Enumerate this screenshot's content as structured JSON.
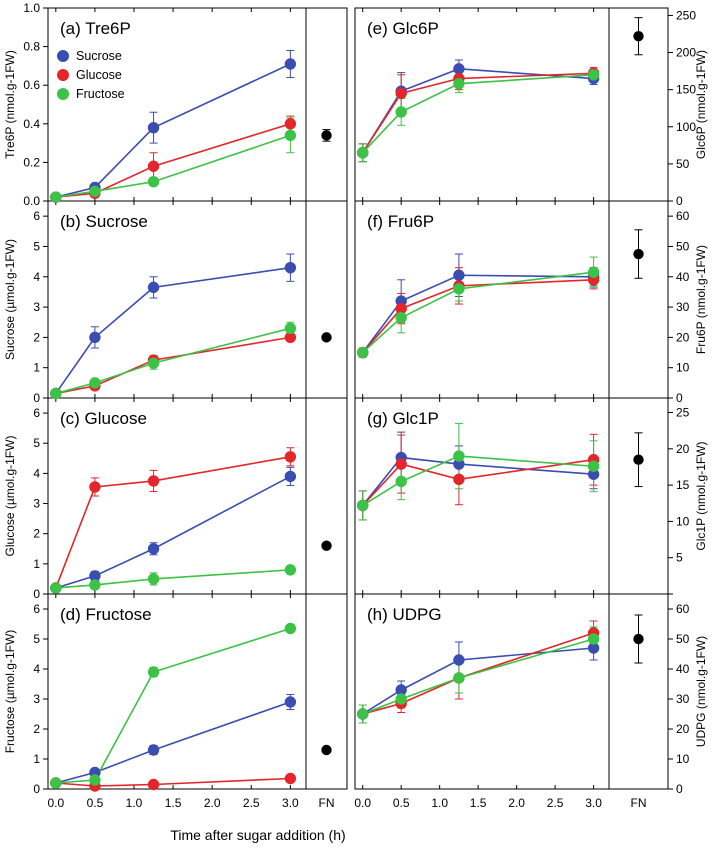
{
  "colors": {
    "Sucrose": "#3a4db0",
    "Glucose": "#e3262a",
    "Fructose": "#3cc246",
    "FN": "#000000"
  },
  "legend": [
    "Sucrose",
    "Glucose",
    "Fructose"
  ],
  "x_title": "Time after sugar addition (h)",
  "x_ticks": [
    "0.0",
    "0.5",
    "1.0",
    "1.5",
    "2.0",
    "2.5",
    "3.0"
  ],
  "fn_label": "FN",
  "chart_data": [
    {
      "type": "line",
      "id": "a",
      "title": "(a) Tre6P",
      "ylabel": "Tre6P (nmol.g-1FW)",
      "ylim": [
        0,
        1.0
      ],
      "ytick_labels": [
        "0.0",
        "0.2",
        "0.4",
        "0.6",
        "0.8",
        "1.0"
      ],
      "x": [
        0,
        0.5,
        1.25,
        3.0
      ],
      "series": [
        {
          "name": "Sucrose",
          "values": [
            0.02,
            0.07,
            0.38,
            0.71
          ],
          "errors": [
            0.01,
            0.02,
            0.08,
            0.07
          ]
        },
        {
          "name": "Glucose",
          "values": [
            0.02,
            0.04,
            0.18,
            0.4
          ],
          "errors": [
            0.01,
            0.02,
            0.07,
            0.04
          ]
        },
        {
          "name": "Fructose",
          "values": [
            0.02,
            0.05,
            0.1,
            0.34
          ],
          "errors": [
            0.01,
            0.02,
            0.02,
            0.09
          ]
        }
      ],
      "fn": {
        "value": 0.34,
        "error": 0.03
      }
    },
    {
      "type": "line",
      "id": "b",
      "title": "(b) Sucrose",
      "ylabel": "Sucrose (µmol.g-1FW)",
      "ylim": [
        0,
        6.5
      ],
      "ytick_labels": [
        "0",
        "1",
        "2",
        "3",
        "4",
        "5",
        "6"
      ],
      "x": [
        0,
        0.5,
        1.25,
        3.0
      ],
      "series": [
        {
          "name": "Sucrose",
          "values": [
            0.15,
            2.0,
            3.65,
            4.3
          ],
          "errors": [
            0.05,
            0.35,
            0.35,
            0.45
          ]
        },
        {
          "name": "Glucose",
          "values": [
            0.15,
            0.4,
            1.25,
            2.0
          ],
          "errors": [
            0.05,
            0.1,
            0.15,
            0.1
          ]
        },
        {
          "name": "Fructose",
          "values": [
            0.15,
            0.5,
            1.15,
            2.3
          ],
          "errors": [
            0.05,
            0.1,
            0.2,
            0.2
          ]
        }
      ],
      "fn": {
        "value": 2.0,
        "error": 0.08
      }
    },
    {
      "type": "line",
      "id": "c",
      "title": "(c) Glucose",
      "ylabel": "Glucose (µmol.g-1FW)",
      "ylim": [
        0,
        6.5
      ],
      "ytick_labels": [
        "0",
        "1",
        "2",
        "3",
        "4",
        "5",
        "6"
      ],
      "x": [
        0,
        0.5,
        1.25,
        3.0
      ],
      "series": [
        {
          "name": "Sucrose",
          "values": [
            0.2,
            0.6,
            1.5,
            3.9
          ],
          "errors": [
            0.05,
            0.15,
            0.2,
            0.3
          ]
        },
        {
          "name": "Glucose",
          "values": [
            0.2,
            3.55,
            3.75,
            4.55
          ],
          "errors": [
            0.05,
            0.3,
            0.35,
            0.3
          ]
        },
        {
          "name": "Fructose",
          "values": [
            0.2,
            0.3,
            0.5,
            0.8
          ],
          "errors": [
            0.05,
            0.1,
            0.2,
            0.1
          ]
        }
      ],
      "fn": {
        "value": 1.6,
        "error": 0.1
      }
    },
    {
      "type": "line",
      "id": "d",
      "title": "(d) Fructose",
      "ylabel": "Fructose (µmol.g-1FW)",
      "ylim": [
        0,
        6.5
      ],
      "ytick_labels": [
        "0",
        "1",
        "2",
        "3",
        "4",
        "5",
        "6"
      ],
      "x": [
        0,
        0.5,
        1.25,
        3.0
      ],
      "series": [
        {
          "name": "Sucrose",
          "values": [
            0.2,
            0.55,
            1.3,
            2.9
          ],
          "errors": [
            0.05,
            0.1,
            0.15,
            0.25
          ]
        },
        {
          "name": "Glucose",
          "values": [
            0.2,
            0.1,
            0.15,
            0.35
          ],
          "errors": [
            0.05,
            0.05,
            0.05,
            0.05
          ]
        },
        {
          "name": "Fructose",
          "values": [
            0.2,
            0.3,
            3.9,
            5.35
          ],
          "errors": [
            0.05,
            0.05,
            0.15,
            0.1
          ]
        }
      ],
      "fn": {
        "value": 1.3,
        "error": 0.05
      }
    },
    {
      "type": "line",
      "id": "e",
      "title": "(e) Glc6P",
      "ylabel": "Glc6P (nmol.g-1FW)",
      "ylim": [
        0,
        260
      ],
      "ytick_labels": [
        "0",
        "50",
        "100",
        "150",
        "200",
        "250"
      ],
      "x": [
        0,
        0.5,
        1.25,
        3.0
      ],
      "series": [
        {
          "name": "Sucrose",
          "values": [
            65,
            148,
            178,
            165
          ],
          "errors": [
            12,
            25,
            12,
            8
          ]
        },
        {
          "name": "Glucose",
          "values": [
            65,
            145,
            165,
            172
          ],
          "errors": [
            12,
            25,
            15,
            8
          ]
        },
        {
          "name": "Fructose",
          "values": [
            65,
            120,
            158,
            170
          ],
          "errors": [
            12,
            18,
            12,
            8
          ]
        }
      ],
      "fn": {
        "value": 222,
        "error": 25
      }
    },
    {
      "type": "line",
      "id": "f",
      "title": "(f) Fru6P",
      "ylabel": "Fru6P (nmol.g-1FW)",
      "ylim": [
        0,
        65
      ],
      "ytick_labels": [
        "0",
        "10",
        "20",
        "30",
        "40",
        "50",
        "60"
      ],
      "x": [
        0,
        0.5,
        1.25,
        3.0
      ],
      "series": [
        {
          "name": "Sucrose",
          "values": [
            15,
            32,
            40.5,
            40
          ],
          "errors": [
            1.5,
            7,
            7,
            3
          ]
        },
        {
          "name": "Glucose",
          "values": [
            15,
            29.5,
            37,
            39
          ],
          "errors": [
            1.5,
            5,
            6,
            3
          ]
        },
        {
          "name": "Fructose",
          "values": [
            15,
            26.5,
            36,
            41.5
          ],
          "errors": [
            1.5,
            5,
            4,
            5
          ]
        }
      ],
      "fn": {
        "value": 47.5,
        "error": 8
      }
    },
    {
      "type": "line",
      "id": "g",
      "title": "(g) Glc1P",
      "ylabel": "Glc1P (nmol.g-1FW)",
      "ylim": [
        0,
        27
      ],
      "ytick_labels": [
        "",
        "5",
        "10",
        "15",
        "20",
        "25"
      ],
      "x": [
        0,
        0.5,
        1.25,
        3.0
      ],
      "series": [
        {
          "name": "Sucrose",
          "values": [
            12.2,
            18.8,
            17.9,
            16.5
          ],
          "errors": [
            2.0,
            3.5,
            2.5,
            2.0
          ]
        },
        {
          "name": "Glucose",
          "values": [
            12.2,
            17.9,
            15.8,
            18.5
          ],
          "errors": [
            2.0,
            4.0,
            3.5,
            3.5
          ]
        },
        {
          "name": "Fructose",
          "values": [
            12.2,
            15.5,
            19.0,
            17.6
          ],
          "errors": [
            2.0,
            2.5,
            4.5,
            3.5
          ]
        }
      ],
      "fn": {
        "value": 18.5,
        "error": 3.7
      }
    },
    {
      "type": "line",
      "id": "h",
      "title": "(h) UDPG",
      "ylabel": "UDPG (nmol.g-1FW)",
      "ylim": [
        0,
        65
      ],
      "ytick_labels": [
        "0",
        "10",
        "20",
        "30",
        "40",
        "50",
        "60"
      ],
      "x": [
        0,
        0.5,
        1.25,
        3.0
      ],
      "series": [
        {
          "name": "Sucrose",
          "values": [
            25,
            33,
            43,
            47
          ],
          "errors": [
            3,
            3,
            6,
            4
          ]
        },
        {
          "name": "Glucose",
          "values": [
            25,
            28.5,
            37,
            52
          ],
          "errors": [
            3,
            3,
            7,
            4
          ]
        },
        {
          "name": "Fructose",
          "values": [
            25,
            30,
            37,
            50
          ],
          "errors": [
            3,
            3,
            5,
            4
          ]
        }
      ],
      "fn": {
        "value": 50,
        "error": 8
      }
    }
  ]
}
